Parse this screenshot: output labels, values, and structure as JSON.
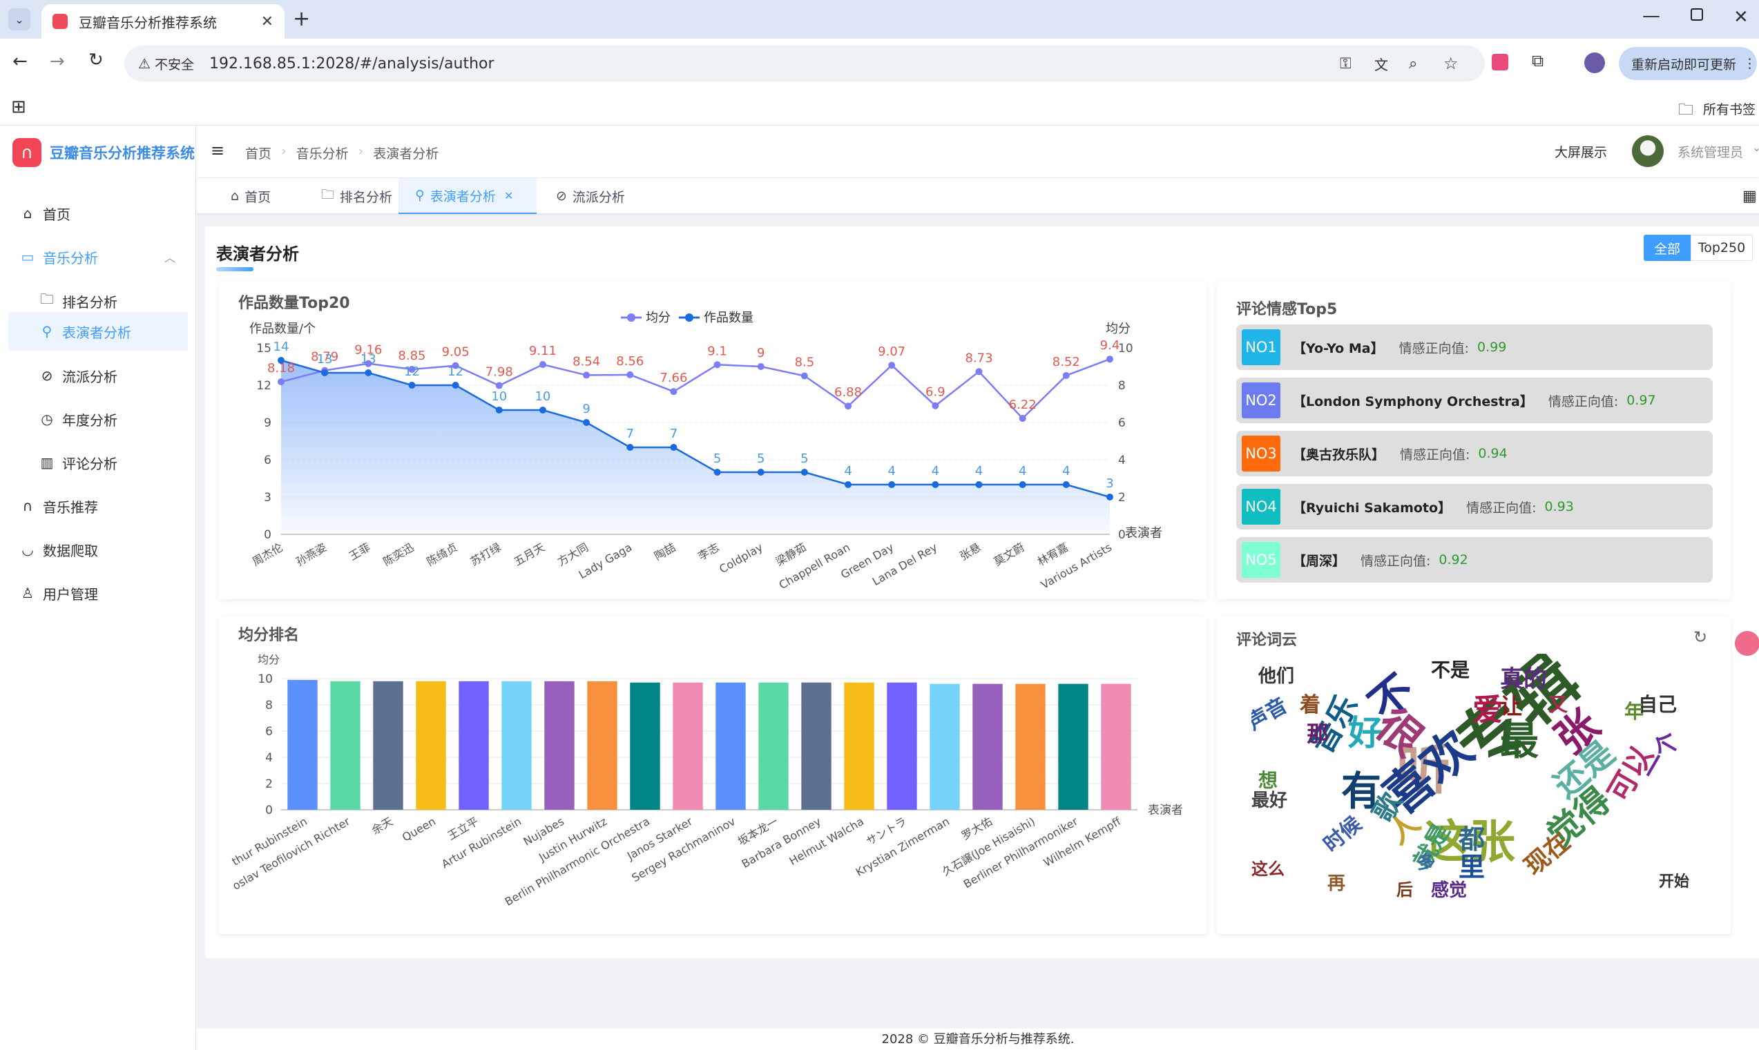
{
  "browser": {
    "tab_title": "豆瓣音乐分析推荐系统",
    "security_label": "不安全",
    "url": "192.168.85.1:2028/#/analysis/author",
    "update_button": "重新启动即可更新",
    "bookmarks_all": "所有书签"
  },
  "app": {
    "title": "豆瓣音乐分析推荐系统",
    "sidebar": {
      "home": "首页",
      "music_analysis": "音乐分析",
      "ranking": "排名分析",
      "performer": "表演者分析",
      "genre": "流派分析",
      "year": "年度分析",
      "comment": "评论分析",
      "recommend": "音乐推荐",
      "crawl": "数据爬取",
      "users": "用户管理"
    },
    "breadcrumb": [
      "首页",
      "音乐分析",
      "表演者分析"
    ],
    "bigscreen": "大屏展示",
    "username": "系统管理员",
    "tags": [
      "首页",
      "排名分析",
      "表演者分析",
      "流派分析"
    ],
    "page_title": "表演者分析",
    "filter": {
      "all": "全部",
      "top250": "Top250"
    },
    "footer": "2028 © 豆瓣音乐分析与推荐系统."
  },
  "chart_data": [
    {
      "type": "line",
      "title": "作品数量Top20",
      "ylabel_left": "作品数量/个",
      "ylabel_right": "均分",
      "xlabel": "表演者",
      "legend": [
        "均分",
        "作品数量"
      ],
      "ylim_left": [
        0,
        15
      ],
      "ylim_right": [
        0,
        10
      ],
      "categories": [
        "周杰伦",
        "孙燕姿",
        "王菲",
        "陈奕迅",
        "陈绮贞",
        "苏打绿",
        "五月天",
        "方大同",
        "Lady Gaga",
        "陶喆",
        "李志",
        "Coldplay",
        "梁静茹",
        "Chappell Roan",
        "Green Day",
        "Lana Del Rey",
        "张悬",
        "莫文蔚",
        "林宥嘉",
        "Various Artists"
      ],
      "series": [
        {
          "name": "均分",
          "axis": "right",
          "color": "#7b7cf6",
          "values": [
            8.18,
            8.79,
            9.16,
            8.85,
            9.05,
            7.98,
            9.11,
            8.54,
            8.56,
            7.66,
            9.1,
            9,
            8.5,
            6.88,
            9.07,
            6.9,
            8.73,
            6.22,
            8.52,
            9.4
          ]
        },
        {
          "name": "作品数量",
          "axis": "left",
          "color": "#1a6be0",
          "values": [
            14,
            13,
            13,
            12,
            12,
            10,
            10,
            9,
            7,
            7,
            5,
            5,
            5,
            4,
            4,
            4,
            4,
            4,
            4,
            3
          ]
        }
      ]
    },
    {
      "type": "bar",
      "title": "均分排名",
      "ylabel": "均分",
      "xlabel": "表演者",
      "ylim": [
        0,
        10
      ],
      "categories": [
        "Arthur Rubinstein",
        "Sviatoslav Teofilovich Richter",
        "余天",
        "Queen",
        "王立平",
        "Artur Rubinstein",
        "Nujabes",
        "Justin Hurwitz",
        "Berlin Philharmonic Orchestra",
        "Janos Starker",
        "Sergey Rachmaninov",
        "坂本龙一",
        "Barbara Bonney",
        "Helmut Walcha",
        "サントラ",
        "Krystian Zimerman",
        "罗大佑",
        "久石譲(Joe Hisaishi)",
        "Berliner Philharmoniker",
        "Wilhelm Kempff"
      ],
      "tick_labels": [
        "thur Rubinstein",
        "oslav Teofilovich Richter",
        "余天",
        "Queen",
        "王立平",
        "Artur Rubinstein",
        "Nujabes",
        "Justin Hurwitz",
        "Berlin Philharmonic Orchestra",
        "Janos Starker",
        "Sergey Rachmaninov",
        "坂本龙一",
        "Barbara Bonney",
        "Helmut Walcha",
        "サントラ",
        "Krystian Zimerman",
        "罗大佑",
        "久石譲(Joe Hisaishi)",
        "Berliner Philharmoniker",
        "Wilhelm Kempff"
      ],
      "values": [
        9.9,
        9.8,
        9.8,
        9.8,
        9.8,
        9.8,
        9.8,
        9.8,
        9.7,
        9.7,
        9.7,
        9.7,
        9.7,
        9.7,
        9.7,
        9.6,
        9.6,
        9.6,
        9.6,
        9.6
      ],
      "colors": [
        "#5b8ff9",
        "#5ad8a6",
        "#5d7092",
        "#f6bd16",
        "#7262fd",
        "#78d3f8",
        "#9661bc",
        "#f6903d",
        "#008685",
        "#f08bb4"
      ]
    }
  ],
  "sentiment": {
    "title": "评论情感Top5",
    "label": "情感正向值:",
    "items": [
      {
        "rank": "NO1",
        "name": "【Yo-Yo Ma】",
        "value": "0.99",
        "color": "#1fb5e8"
      },
      {
        "rank": "NO2",
        "name": "【London Symphony Orchestra】",
        "value": "0.97",
        "color": "#6c7cf0"
      },
      {
        "rank": "NO3",
        "name": "【奥古孜乐队】",
        "value": "0.94",
        "color": "#ff6a0d"
      },
      {
        "rank": "NO4",
        "name": "【Ryuichi Sakamoto】",
        "value": "0.93",
        "color": "#10bec2"
      },
      {
        "rank": "NO5",
        "name": "【周深】",
        "value": "0.92",
        "color": "#7fffd4"
      }
    ]
  },
  "wordcloud": {
    "title": "评论词云",
    "words": [
      {
        "t": "专辑",
        "c": "#2d5a27"
      },
      {
        "t": "听",
        "c": "#c89f8a"
      },
      {
        "t": "喜欢",
        "c": "#1a3a8a"
      },
      {
        "t": "这张",
        "c": "#8fa832"
      },
      {
        "t": "有",
        "c": "#12406e"
      },
      {
        "t": "好",
        "c": "#22aabb"
      },
      {
        "t": "不",
        "c": "#1f2e8a"
      },
      {
        "t": "很",
        "c": "#9e3a75"
      },
      {
        "t": "最",
        "c": "#2a5f2a"
      },
      {
        "t": "张",
        "c": "#8b1a6b"
      },
      {
        "t": "还是",
        "c": "#5ab0a0"
      },
      {
        "t": "爱",
        "c": "#b0184a"
      },
      {
        "t": "真的",
        "c": "#5a2a7e"
      },
      {
        "t": "觉得",
        "c": "#3a8a4a"
      },
      {
        "t": "音乐",
        "c": "#0e5c8a"
      },
      {
        "t": "人",
        "c": "#c4a02a"
      },
      {
        "t": "都",
        "c": "#2d6a8a"
      },
      {
        "t": "里",
        "c": "#1b4f9a"
      },
      {
        "t": "就是",
        "c": "#3a9a6a"
      },
      {
        "t": "他们",
        "c": "#333333"
      },
      {
        "t": "不是",
        "c": "#222222"
      },
      {
        "t": "让",
        "c": "#8b1a1a"
      },
      {
        "t": "可以",
        "c": "#b02a6a"
      },
      {
        "t": "歌",
        "c": "#2a7a8a"
      },
      {
        "t": "一个",
        "c": "#6a2a9a"
      },
      {
        "t": "现在",
        "c": "#9a5a1a"
      },
      {
        "t": "时候",
        "c": "#3a5aaa"
      },
      {
        "t": "声音",
        "c": "#2a5aaa"
      },
      {
        "t": "开始",
        "c": "#333333"
      },
      {
        "t": "最好",
        "c": "#444444"
      },
      {
        "t": "这么",
        "c": "#8a2a2a"
      },
      {
        "t": "感觉",
        "c": "#5a2a8a"
      },
      {
        "t": "自己",
        "c": "#333333"
      },
      {
        "t": "那",
        "c": "#6a1a6a"
      },
      {
        "t": "想",
        "c": "#4a8a3a"
      },
      {
        "t": "着",
        "c": "#8a4a1a"
      },
      {
        "t": "吧",
        "c": "#444444"
      },
      {
        "t": "多",
        "c": "#3a6aaa"
      },
      {
        "t": "再",
        "c": "#8a5a2a"
      },
      {
        "t": "后",
        "c": "#7a3a1a"
      },
      {
        "t": "年",
        "c": "#5a8a2a"
      },
      {
        "t": "又",
        "c": "#aa2a4a"
      }
    ]
  }
}
